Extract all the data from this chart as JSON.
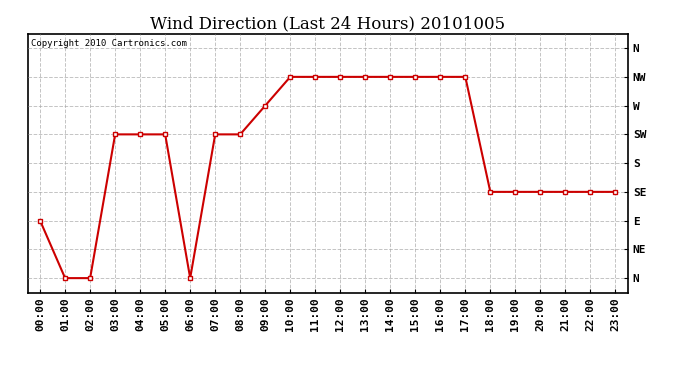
{
  "title": "Wind Direction (Last 24 Hours) 20101005",
  "copyright": "Copyright 2010 Cartronics.com",
  "line_color": "#cc0000",
  "background_color": "#ffffff",
  "grid_color": "#aaaaaa",
  "hours": [
    0,
    1,
    2,
    3,
    4,
    5,
    6,
    7,
    8,
    9,
    10,
    11,
    12,
    13,
    14,
    15,
    16,
    17,
    18,
    19,
    20,
    21,
    22,
    23
  ],
  "values": [
    2,
    0,
    0,
    5,
    5,
    5,
    0,
    5,
    5,
    6,
    7,
    7,
    7,
    7,
    7,
    7,
    7,
    7,
    3,
    3,
    3,
    3,
    3,
    3
  ],
  "ytick_positions": [
    0,
    1,
    2,
    3,
    4,
    5,
    6,
    7,
    8
  ],
  "ylabels": [
    "N",
    "NE",
    "E",
    "SE",
    "S",
    "SW",
    "W",
    "NW",
    "N"
  ],
  "title_fontsize": 12,
  "axis_fontsize": 8,
  "marker_size": 3,
  "line_width": 1.5
}
